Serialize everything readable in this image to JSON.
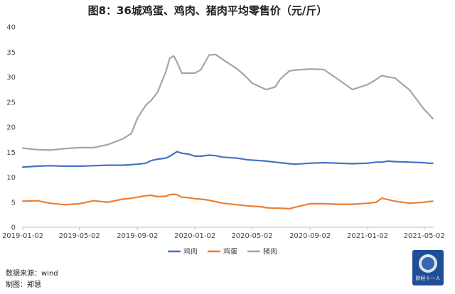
{
  "chart_data": {
    "type": "line",
    "title": "图8：36城鸡蛋、鸡肉、猪肉平均零售价（元/斤）",
    "x": [
      "2019-01-02",
      "2019-02-01",
      "2019-03-01",
      "2019-04-01",
      "2019-05-02",
      "2019-06-01",
      "2019-07-01",
      "2019-08-01",
      "2019-08-20",
      "2019-09-02",
      "2019-09-20",
      "2019-10-01",
      "2019-10-15",
      "2019-11-01",
      "2019-11-10",
      "2019-11-18",
      "2019-11-25",
      "2019-12-05",
      "2019-12-20",
      "2020-01-02",
      "2020-01-15",
      "2020-02-01",
      "2020-02-15",
      "2020-03-01",
      "2020-04-01",
      "2020-04-20",
      "2020-05-02",
      "2020-05-20",
      "2020-06-01",
      "2020-06-20",
      "2020-07-01",
      "2020-07-20",
      "2020-08-01",
      "2020-09-02",
      "2020-10-01",
      "2020-11-01",
      "2020-12-01",
      "2021-01-02",
      "2021-01-20",
      "2021-02-01",
      "2021-02-15",
      "2021-03-01",
      "2021-04-01",
      "2021-05-02",
      "2021-05-10",
      "2021-05-20"
    ],
    "series": [
      {
        "name": "鸡肉",
        "color": "#4472C4",
        "values": [
          12.0,
          12.2,
          12.3,
          12.2,
          12.2,
          12.3,
          12.4,
          12.4,
          12.5,
          12.6,
          12.8,
          13.3,
          13.6,
          13.8,
          14.2,
          14.7,
          15.1,
          14.8,
          14.6,
          14.2,
          14.2,
          14.4,
          14.3,
          14.0,
          13.8,
          13.5,
          13.4,
          13.3,
          13.2,
          13.0,
          12.9,
          12.7,
          12.6,
          12.8,
          12.9,
          12.8,
          12.7,
          12.8,
          13.0,
          13.0,
          13.2,
          13.1,
          13.0,
          12.9,
          12.8,
          12.8
        ]
      },
      {
        "name": "鸡蛋",
        "color": "#ED7D31",
        "values": [
          5.2,
          5.3,
          4.8,
          4.5,
          4.7,
          5.3,
          5.0,
          5.6,
          5.8,
          6.0,
          6.3,
          6.4,
          6.1,
          6.2,
          6.5,
          6.6,
          6.5,
          6.0,
          5.9,
          5.7,
          5.6,
          5.4,
          5.1,
          4.8,
          4.5,
          4.3,
          4.2,
          4.1,
          3.9,
          3.8,
          3.8,
          3.7,
          4.0,
          4.7,
          4.7,
          4.6,
          4.6,
          4.8,
          5.0,
          5.8,
          5.5,
          5.2,
          4.8,
          5.0,
          5.1,
          5.2
        ]
      },
      {
        "name": "猪肉",
        "color": "#A5A5A5",
        "values": [
          15.8,
          15.5,
          15.4,
          15.7,
          15.9,
          15.9,
          16.5,
          17.6,
          18.7,
          21.8,
          24.4,
          25.3,
          27.0,
          31.0,
          33.8,
          34.2,
          33.0,
          30.8,
          30.8,
          30.8,
          31.5,
          34.4,
          34.5,
          33.5,
          31.6,
          30.0,
          28.8,
          28.0,
          27.5,
          28.0,
          29.6,
          31.2,
          31.4,
          31.6,
          31.5,
          29.5,
          27.5,
          28.5,
          29.5,
          30.3,
          30.0,
          29.8,
          27.4,
          23.5,
          22.8,
          21.7
        ]
      }
    ],
    "x_tick_labels": [
      "2019-01-02",
      "2019-05-02",
      "2019-09-02",
      "2020-01-02",
      "2020-05-02",
      "2020-09-02",
      "2021-01-02",
      "2021-05-02"
    ],
    "y_tick_labels": [
      "0",
      "5",
      "10",
      "15",
      "20",
      "25",
      "30",
      "35",
      "40"
    ],
    "ylim": [
      0,
      40
    ],
    "grid": false,
    "legend_position": "bottom"
  },
  "footer": {
    "source": "数据来源：wind",
    "author": "制图：郑慧"
  },
  "logo": {
    "text": "财经十一人"
  }
}
